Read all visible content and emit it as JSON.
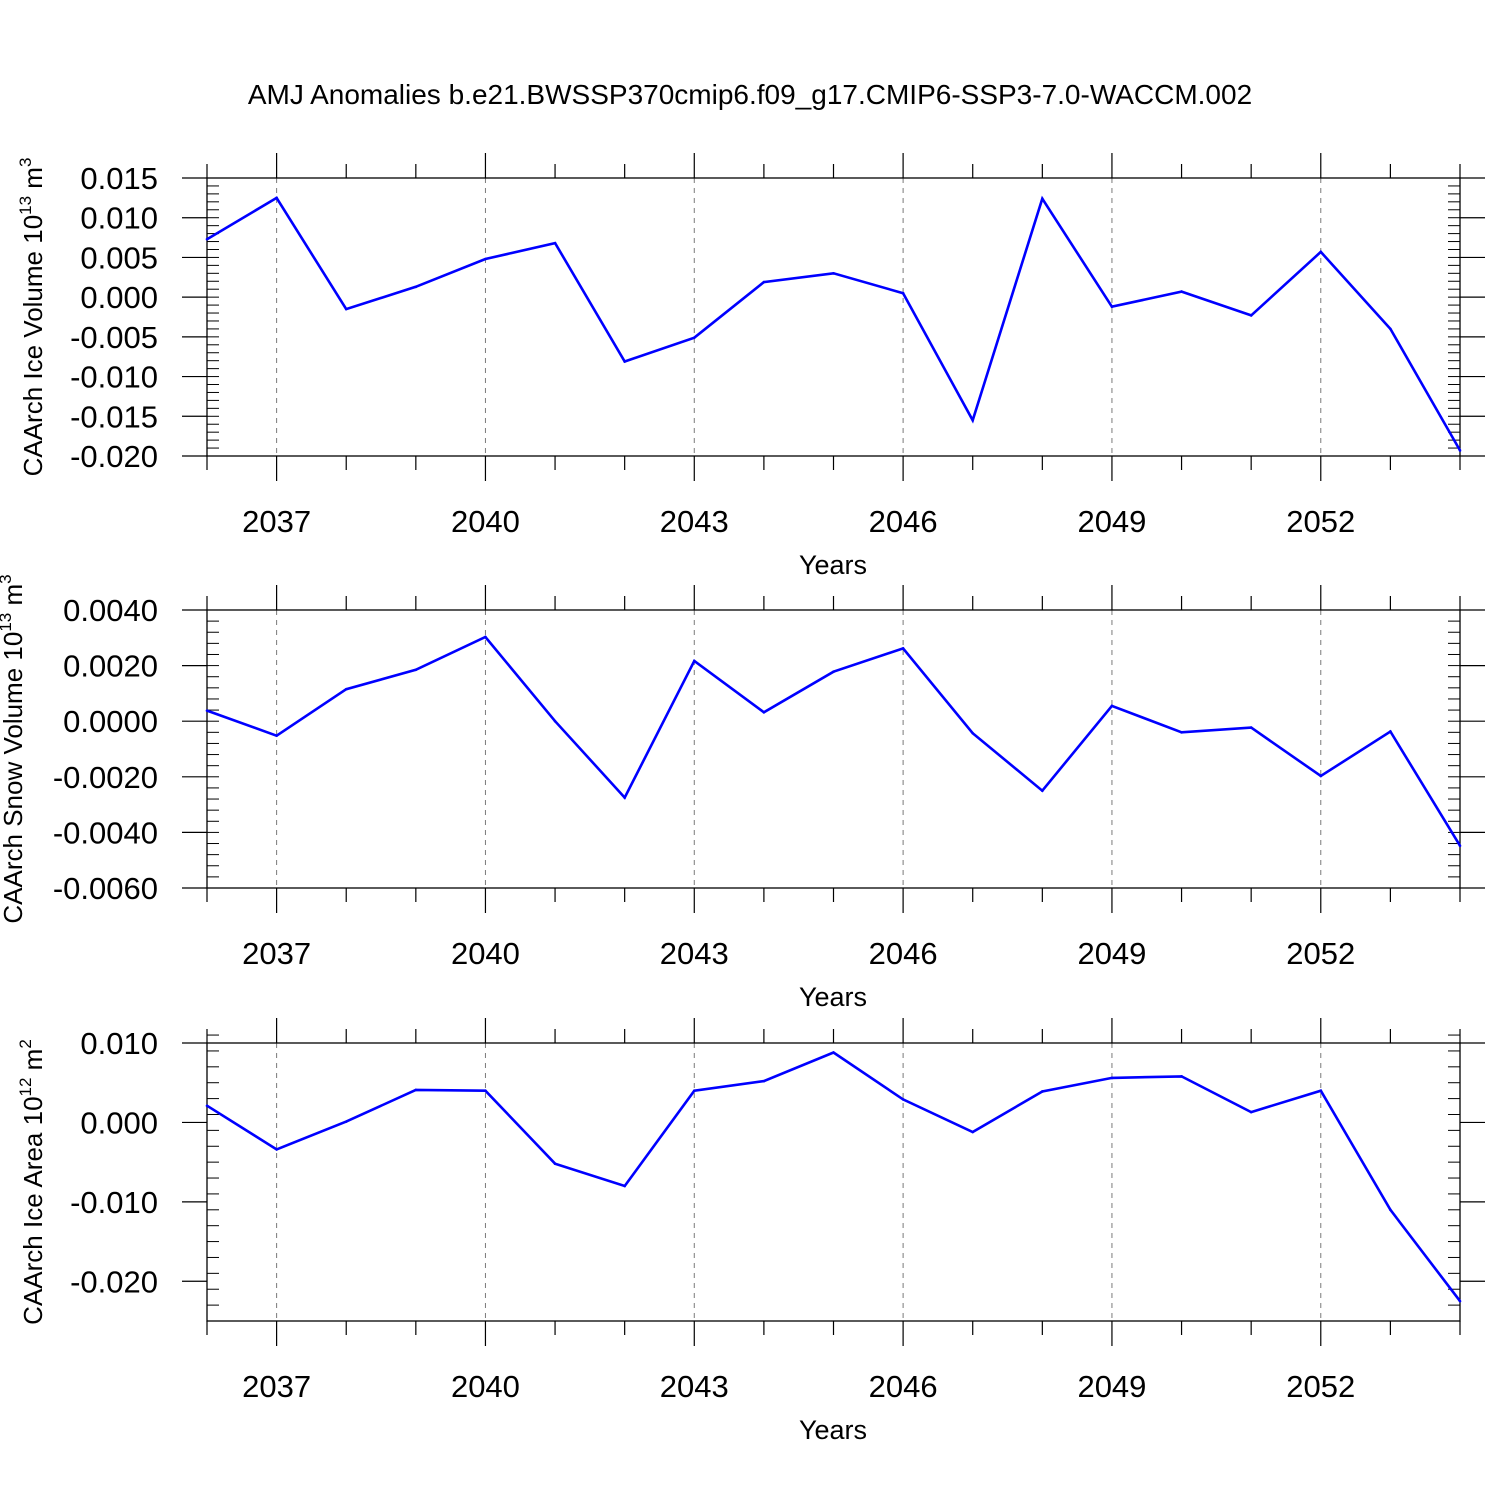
{
  "figure": {
    "title": "AMJ Anomalies b.e21.BWSSP370cmip6.f09_g17.CMIP6-SSP3-7.0-WACCM.002",
    "line_color": "#0000ff",
    "grid": "vertical dashed at major x ticks"
  },
  "chart_data": [
    {
      "type": "line",
      "xlabel": "Years",
      "ylabel": {
        "text": "CAArch Ice Volume 10",
        "exp": "13",
        "unit": " m",
        "unit_exp": "3"
      },
      "xlim": [
        2036,
        2054
      ],
      "ylim": [
        -0.02,
        0.015
      ],
      "xticks": [
        2037,
        2040,
        2043,
        2046,
        2049,
        2052
      ],
      "xtick_labels": [
        "2037",
        "2040",
        "2043",
        "2046",
        "2049",
        "2052"
      ],
      "yticks": [
        -0.02,
        -0.015,
        -0.01,
        -0.005,
        0,
        0.005,
        0.01,
        0.015
      ],
      "ytick_labels": [
        "-0.020",
        "-0.015",
        "-0.010",
        "-0.005",
        "0.000",
        "0.005",
        "0.010",
        "0.015"
      ],
      "ytick_minor_step": 0.001,
      "x": [
        2036,
        2037,
        2038,
        2039,
        2040,
        2041,
        2042,
        2043,
        2044,
        2045,
        2046,
        2047,
        2048,
        2049,
        2050,
        2051,
        2052,
        2053,
        2054
      ],
      "y": [
        0.0073,
        0.0125,
        -0.0015,
        0.0013,
        0.0048,
        0.0068,
        -0.0081,
        -0.0051,
        0.0019,
        0.003,
        0.0005,
        -0.0155,
        0.0124,
        -0.0012,
        0.0007,
        -0.0023,
        0.0057,
        -0.004,
        -0.0193
      ]
    },
    {
      "type": "line",
      "xlabel": "Years",
      "ylabel": {
        "text": "CAArch Snow Volume 10",
        "exp": "13",
        "unit": " m",
        "unit_exp": "3"
      },
      "xlim": [
        2036,
        2054
      ],
      "ylim": [
        -0.006,
        0.004
      ],
      "xticks": [
        2037,
        2040,
        2043,
        2046,
        2049,
        2052
      ],
      "xtick_labels": [
        "2037",
        "2040",
        "2043",
        "2046",
        "2049",
        "2052"
      ],
      "yticks": [
        -0.006,
        -0.004,
        -0.002,
        0,
        0.002,
        0.004
      ],
      "ytick_labels": [
        "-0.0060",
        "-0.0040",
        "-0.0020",
        "0.0000",
        "0.0020",
        "0.0040"
      ],
      "ytick_minor_step": 0.0004,
      "x": [
        2036,
        2037,
        2038,
        2039,
        2040,
        2041,
        2042,
        2043,
        2044,
        2045,
        2046,
        2047,
        2048,
        2049,
        2050,
        2051,
        2052,
        2053,
        2054
      ],
      "y": [
        0.00038,
        -0.00052,
        0.00115,
        0.00185,
        0.00303,
        0.0,
        -0.00275,
        0.00217,
        0.00032,
        0.00178,
        0.00262,
        -0.00043,
        -0.0025,
        0.00055,
        -0.0004,
        -0.00023,
        -0.00197,
        -0.00037,
        -0.00448
      ]
    },
    {
      "type": "line",
      "xlabel": "Years",
      "ylabel": {
        "text": "CAArch Ice Area 10",
        "exp": "12",
        "unit": " m",
        "unit_exp": "2"
      },
      "xlim": [
        2036,
        2054
      ],
      "ylim": [
        -0.025,
        0.01
      ],
      "xticks": [
        2037,
        2040,
        2043,
        2046,
        2049,
        2052
      ],
      "xtick_labels": [
        "2037",
        "2040",
        "2043",
        "2046",
        "2049",
        "2052"
      ],
      "yticks": [
        -0.02,
        -0.01,
        0,
        0.01
      ],
      "ytick_labels": [
        "-0.020",
        "-0.010",
        "0.000",
        "0.010"
      ],
      "ytick_minor_step": 0.002,
      "x": [
        2036,
        2037,
        2038,
        2039,
        2040,
        2041,
        2042,
        2043,
        2044,
        2045,
        2046,
        2047,
        2048,
        2049,
        2050,
        2051,
        2052,
        2053,
        2054
      ],
      "y": [
        0.0021,
        -0.0034,
        0.0001,
        0.0041,
        0.004,
        -0.0052,
        -0.008,
        0.004,
        0.0052,
        0.0088,
        0.0029,
        -0.0012,
        0.0039,
        0.0056,
        0.0058,
        0.0013,
        0.004,
        -0.011,
        -0.0225
      ]
    }
  ]
}
